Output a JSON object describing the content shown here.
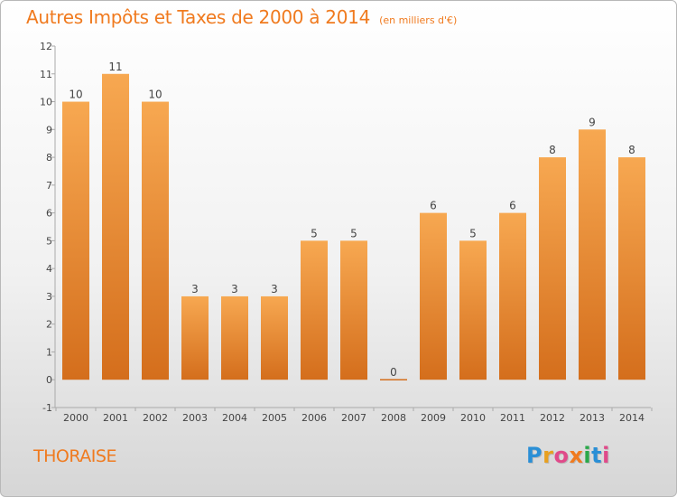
{
  "header": {
    "title": "Autres Impôts et Taxes de 2000 à 2014",
    "subtitle": "(en milliers d'€)"
  },
  "footer": {
    "place": "THORAISE",
    "brand": "Proxiti"
  },
  "colors": {
    "accent": "#f07a1e",
    "bar_light": "#f7a851",
    "bar_dark": "#d46e1c"
  },
  "chart_data": {
    "type": "bar",
    "categories": [
      "2000",
      "2001",
      "2002",
      "2003",
      "2004",
      "2005",
      "2006",
      "2007",
      "2008",
      "2009",
      "2010",
      "2011",
      "2012",
      "2013",
      "2014"
    ],
    "values": [
      10,
      11,
      10,
      3,
      3,
      3,
      5,
      5,
      0,
      6,
      5,
      6,
      8,
      9,
      8
    ],
    "ylim": [
      -1,
      12
    ],
    "yticks": [
      -1,
      0,
      1,
      2,
      3,
      4,
      5,
      6,
      7,
      8,
      9,
      10,
      11,
      12
    ],
    "grid": false,
    "data_labels": true
  }
}
